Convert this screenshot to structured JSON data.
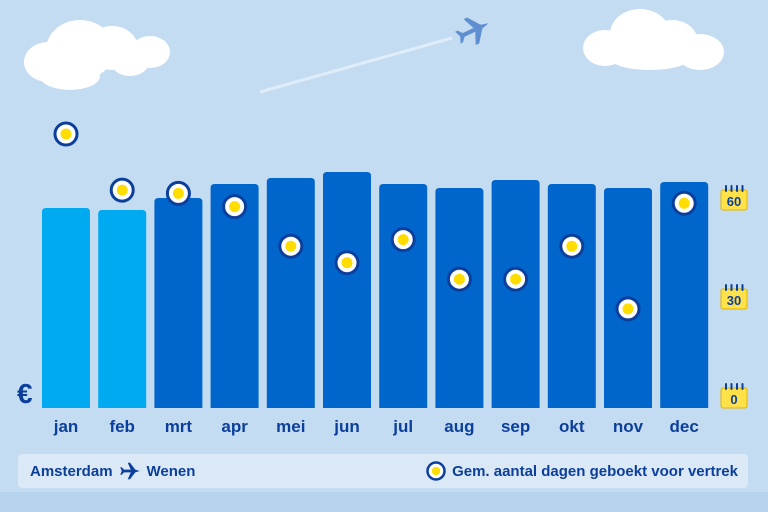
{
  "chart_data": {
    "type": "bar",
    "categories": [
      "jan",
      "feb",
      "mrt",
      "apr",
      "mei",
      "jun",
      "jul",
      "aug",
      "sep",
      "okt",
      "nov",
      "dec"
    ],
    "series": [
      {
        "values": [
          100,
          99,
          105,
          112,
          115,
          118,
          112,
          110,
          114,
          112,
          110,
          113
        ]
      },
      {
        "values": [
          80,
          63,
          62,
          58,
          46,
          41,
          48,
          36,
          36,
          46,
          27,
          59
        ]
      }
    ],
    "y2_ticks": [
      60,
      30,
      0
    ],
    "y2lim": [
      0,
      60
    ],
    "currency_symbol": "€",
    "highlight_months": [
      "jan",
      "feb"
    ],
    "colors": {
      "bar_highlight": "#00aaf0",
      "bar_default": "#0066cc",
      "marker_ring": "#0c3f9b",
      "marker_fill": "#ffdd00",
      "text": "#0c3f9b",
      "calendar": "#ffe14a"
    }
  },
  "legend": {
    "origin": "Amsterdam",
    "destination": "Wenen",
    "route_icon": "plane-icon",
    "marker_label": "Gem. aantal dagen geboekt voor vertrek"
  }
}
